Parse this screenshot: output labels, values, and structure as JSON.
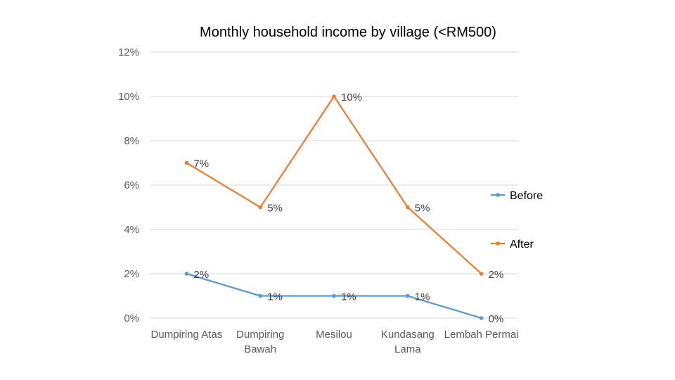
{
  "chart_data": {
    "type": "line",
    "title": "Monthly household income by village (<RM500)",
    "xlabel": "",
    "ylabel": "",
    "categories": [
      "Dumpiring Atas",
      "Dumpiring Bawah",
      "Mesilou",
      "Kundasang Lama",
      "Lembah Permai"
    ],
    "category_lines": [
      [
        "Dumpiring Atas"
      ],
      [
        "Dumpiring",
        "Bawah"
      ],
      [
        "Mesilou"
      ],
      [
        "Kundasang",
        "Lama"
      ],
      [
        "Lembah Permai"
      ]
    ],
    "ylim": [
      0,
      12
    ],
    "yticks": [
      0,
      2,
      4,
      6,
      8,
      10,
      12
    ],
    "ytick_labels": [
      "0%",
      "2%",
      "4%",
      "6%",
      "8%",
      "10%",
      "12%"
    ],
    "grid": true,
    "legend_position": "right",
    "series": [
      {
        "name": "Before",
        "color": "#5b9bd5",
        "values": [
          2,
          1,
          1,
          1,
          0
        ],
        "labels": [
          "2%",
          "1%",
          "1%",
          "1%",
          "0%"
        ]
      },
      {
        "name": "After",
        "color": "#ed7d31",
        "values": [
          7,
          5,
          10,
          5,
          2
        ],
        "labels": [
          "7%",
          "5%",
          "10%",
          "5%",
          "2%"
        ]
      }
    ]
  }
}
